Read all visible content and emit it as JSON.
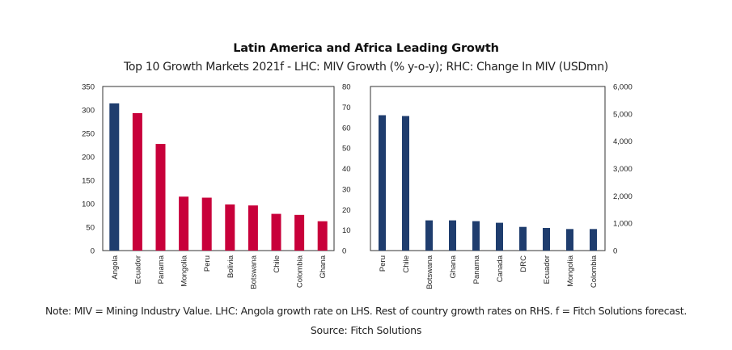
{
  "title": "Latin America and Africa Leading Growth",
  "subtitle": "Top 10 Growth Markets 2021f - LHC: MIV Growth (% y-o-y); RHC: Change In MIV (USDmn)",
  "note": "Note: MIV = Mining Industry Value. LHC: Angola growth rate on LHS. Rest of country growth rates on RHS. f = Fitch Solutions forecast.",
  "source": "Source: Fitch Solutions",
  "colors": {
    "navy": "#1f3d6e",
    "red": "#c8003a",
    "axis": "#333333"
  },
  "chart_data": [
    {
      "type": "bar",
      "name": "LHC: MIV Growth (% y-o-y)",
      "categories": [
        "Angola",
        "Ecuador",
        "Panama",
        "Mongolia",
        "Peru",
        "Bolivia",
        "Botswana",
        "Chile",
        "Colombia",
        "Ghana"
      ],
      "series": [
        {
          "name": "Angola (LHS)",
          "axis": "left",
          "color": "navy",
          "values": [
            314,
            null,
            null,
            null,
            null,
            null,
            null,
            null,
            null,
            null
          ]
        },
        {
          "name": "Rest of countries (RHS)",
          "axis": "right",
          "color": "red",
          "values": [
            null,
            67,
            52,
            26.3,
            25.8,
            22.5,
            22.0,
            17.9,
            17.4,
            14.3
          ]
        }
      ],
      "left_axis": {
        "ylim": [
          0,
          350
        ],
        "ticks": [
          "0",
          "50",
          "100",
          "150",
          "200",
          "250",
          "300",
          "350"
        ]
      },
      "right_axis": {
        "ylim": [
          0,
          80
        ],
        "ticks": [
          "0",
          "10",
          "20",
          "30",
          "40",
          "50",
          "60",
          "70",
          "80"
        ]
      },
      "grid": false,
      "legend": "none"
    },
    {
      "type": "bar",
      "name": "RHC: Change In MIV (USDmn)",
      "categories": [
        "Peru",
        "Chile",
        "Botswana",
        "Ghana",
        "Panama",
        "Canada",
        "DRC",
        "Ecuador",
        "Mongolia",
        "Colombia"
      ],
      "series": [
        {
          "name": "Change In MIV (USDmn)",
          "axis": "right",
          "color": "navy",
          "values": [
            4950,
            4920,
            1105,
            1105,
            1076,
            1017,
            866,
            827,
            788,
            788
          ]
        }
      ],
      "right_axis": {
        "ylim": [
          0,
          6000
        ],
        "ticks": [
          "0",
          "1,000",
          "2,000",
          "3,000",
          "4,000",
          "5,000",
          "6,000"
        ]
      },
      "grid": false,
      "legend": "none"
    }
  ]
}
